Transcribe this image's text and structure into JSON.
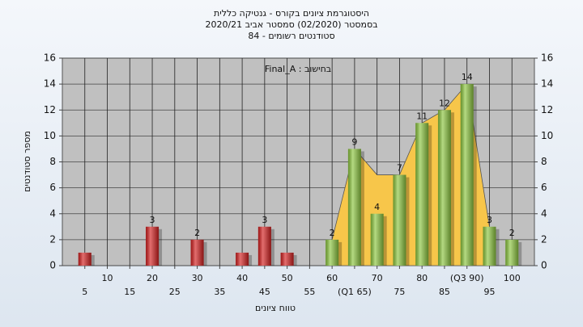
{
  "chart_data": {
    "type": "bar",
    "title": [
      "היסטוגרמת ציונים בקורס - גנטיקה כללית",
      "בסמסטר (02/2020) סמסטר אביב 2020/21",
      "סטודנטים רשומים - 84"
    ],
    "annotation": "בחישוב : Final_A",
    "x_label": "טווח ציונים",
    "y_label": "מספר סטודנטים",
    "x": [
      5,
      10,
      15,
      20,
      25,
      30,
      35,
      40,
      45,
      50,
      55,
      60,
      65,
      70,
      75,
      80,
      85,
      90,
      95,
      100
    ],
    "values": [
      1,
      0,
      0,
      3,
      0,
      2,
      0,
      1,
      3,
      1,
      0,
      2,
      9,
      4,
      7,
      11,
      12,
      14,
      3,
      2
    ],
    "value_labels": [
      null,
      null,
      null,
      "3",
      null,
      "2",
      null,
      null,
      "3",
      null,
      null,
      "2",
      "9",
      "4",
      "7",
      "11",
      "12",
      "14",
      "3",
      "2"
    ],
    "colors": [
      "#d42020",
      "#d42020",
      "#d42020",
      "#d42020",
      "#d42020",
      "#d42020",
      "#d42020",
      "#d42020",
      "#d42020",
      "#d42020",
      "#d42020",
      "#8cc63f",
      "#8cc63f",
      "#8cc63f",
      "#8cc63f",
      "#8cc63f",
      "#8cc63f",
      "#8cc63f",
      "#8cc63f",
      "#8cc63f"
    ],
    "area": {
      "color": "#f7c64a",
      "values": [
        null,
        null,
        null,
        null,
        null,
        null,
        null,
        null,
        null,
        null,
        null,
        2,
        9,
        7,
        7,
        11,
        12,
        14,
        3,
        null
      ]
    },
    "xlim": [
      0,
      105
    ],
    "xticks": [
      5,
      10,
      15,
      20,
      25,
      30,
      35,
      40,
      45,
      50,
      55,
      60,
      {
        "value": 65,
        "label": "(Q1 65)"
      },
      70,
      75,
      80,
      85,
      {
        "value": 90,
        "label": "(Q3 90)"
      },
      95,
      100
    ],
    "ylim": [
      0,
      16
    ],
    "yticks": [
      0,
      2,
      4,
      6,
      8,
      10,
      12,
      14,
      16
    ],
    "y2lim": [
      0,
      16
    ],
    "y2ticks": [
      0,
      2,
      4,
      6,
      8,
      10,
      12,
      14,
      16
    ],
    "grid": true
  }
}
